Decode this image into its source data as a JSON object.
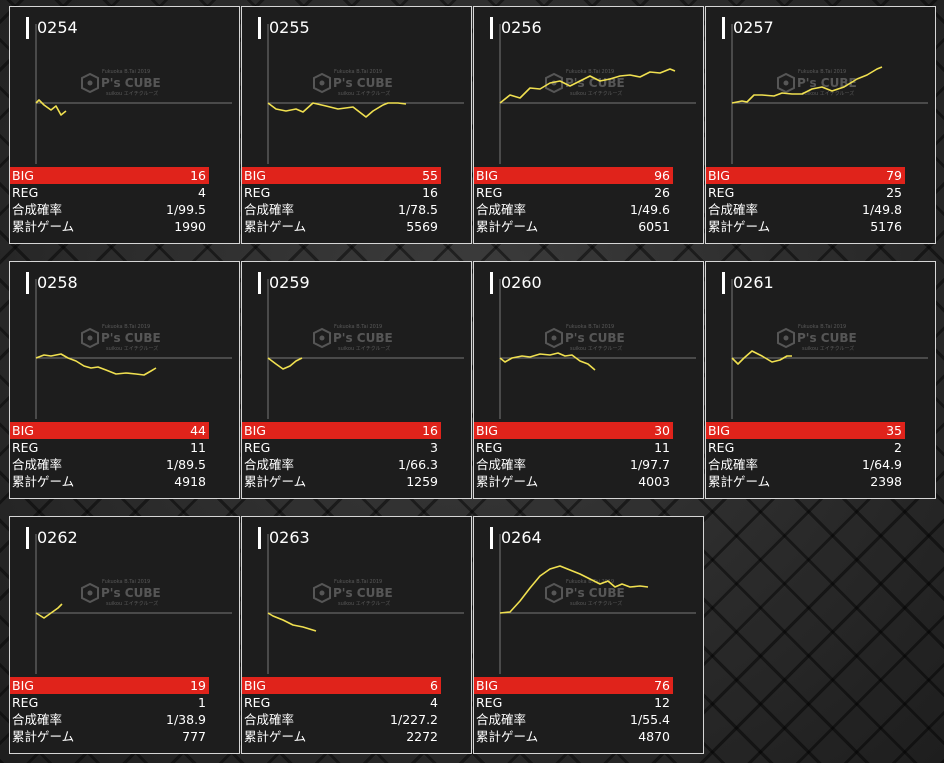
{
  "labels": {
    "big": "BIG",
    "reg": "REG",
    "rate": "合成確率",
    "games": "累計ゲーム"
  },
  "watermark": {
    "brand": "P's CUBE",
    "top_line": "Fukuoka B.Tai 2019",
    "bottom_line": "suikou エイチクルーズ"
  },
  "colors": {
    "line": "#f0e050",
    "big_bar": "#e0231b",
    "card_bg": "#1d1d1d",
    "axis": "#777777"
  },
  "machines": [
    {
      "number": "0254",
      "big": "16",
      "reg": "4",
      "rate": "1/99.5",
      "games": "1990",
      "graph": [
        [
          0,
          0
        ],
        [
          3,
          3
        ],
        [
          8,
          -2
        ],
        [
          15,
          -7
        ],
        [
          20,
          -3
        ],
        [
          25,
          -12
        ],
        [
          30,
          -8
        ]
      ]
    },
    {
      "number": "0255",
      "big": "55",
      "reg": "16",
      "rate": "1/78.5",
      "games": "5569",
      "graph": [
        [
          0,
          0
        ],
        [
          8,
          -6
        ],
        [
          18,
          -8
        ],
        [
          28,
          -6
        ],
        [
          35,
          -9
        ],
        [
          45,
          0
        ],
        [
          58,
          -3
        ],
        [
          70,
          -6
        ],
        [
          85,
          -4
        ],
        [
          98,
          -14
        ],
        [
          105,
          -8
        ],
        [
          115,
          -2
        ],
        [
          120,
          0
        ],
        [
          130,
          0
        ],
        [
          138,
          -1
        ]
      ]
    },
    {
      "number": "0256",
      "big": "96",
      "reg": "26",
      "rate": "1/49.6",
      "games": "6051",
      "graph": [
        [
          0,
          0
        ],
        [
          10,
          8
        ],
        [
          20,
          5
        ],
        [
          30,
          15
        ],
        [
          40,
          14
        ],
        [
          50,
          20
        ],
        [
          60,
          22
        ],
        [
          70,
          17
        ],
        [
          80,
          22
        ],
        [
          90,
          27
        ],
        [
          100,
          22
        ],
        [
          110,
          24
        ],
        [
          120,
          27
        ],
        [
          130,
          28
        ],
        [
          140,
          26
        ],
        [
          150,
          31
        ],
        [
          160,
          30
        ],
        [
          170,
          34
        ],
        [
          175,
          32
        ]
      ]
    },
    {
      "number": "0257",
      "big": "79",
      "reg": "25",
      "rate": "1/49.8",
      "games": "5176",
      "graph": [
        [
          0,
          0
        ],
        [
          10,
          2
        ],
        [
          15,
          1
        ],
        [
          22,
          8
        ],
        [
          30,
          8
        ],
        [
          42,
          7
        ],
        [
          50,
          10
        ],
        [
          60,
          9
        ],
        [
          70,
          9
        ],
        [
          80,
          14
        ],
        [
          90,
          16
        ],
        [
          100,
          12
        ],
        [
          112,
          16
        ],
        [
          125,
          24
        ],
        [
          135,
          28
        ],
        [
          145,
          34
        ],
        [
          150,
          36
        ]
      ]
    },
    {
      "number": "0258",
      "big": "44",
      "reg": "11",
      "rate": "1/89.5",
      "games": "4918",
      "graph": [
        [
          0,
          0
        ],
        [
          8,
          3
        ],
        [
          15,
          2
        ],
        [
          25,
          4
        ],
        [
          32,
          0
        ],
        [
          40,
          -3
        ],
        [
          48,
          -8
        ],
        [
          55,
          -10
        ],
        [
          62,
          -9
        ],
        [
          70,
          -12
        ],
        [
          80,
          -16
        ],
        [
          90,
          -15
        ],
        [
          100,
          -16
        ],
        [
          108,
          -17
        ],
        [
          115,
          -13
        ],
        [
          120,
          -10
        ]
      ]
    },
    {
      "number": "0259",
      "big": "16",
      "reg": "3",
      "rate": "1/66.3",
      "games": "1259",
      "graph": [
        [
          0,
          0
        ],
        [
          8,
          -6
        ],
        [
          15,
          -11
        ],
        [
          22,
          -8
        ],
        [
          28,
          -3
        ],
        [
          34,
          0
        ]
      ]
    },
    {
      "number": "0260",
      "big": "30",
      "reg": "11",
      "rate": "1/97.7",
      "games": "4003",
      "graph": [
        [
          0,
          0
        ],
        [
          5,
          -4
        ],
        [
          12,
          0
        ],
        [
          22,
          2
        ],
        [
          30,
          1
        ],
        [
          40,
          4
        ],
        [
          50,
          3
        ],
        [
          58,
          5
        ],
        [
          65,
          2
        ],
        [
          72,
          3
        ],
        [
          80,
          -3
        ],
        [
          88,
          -6
        ],
        [
          95,
          -12
        ]
      ]
    },
    {
      "number": "0261",
      "big": "35",
      "reg": "2",
      "rate": "1/64.9",
      "games": "2398",
      "graph": [
        [
          0,
          0
        ],
        [
          6,
          -6
        ],
        [
          12,
          0
        ],
        [
          20,
          7
        ],
        [
          30,
          2
        ],
        [
          40,
          -4
        ],
        [
          48,
          -2
        ],
        [
          55,
          2
        ],
        [
          60,
          2
        ]
      ]
    },
    {
      "number": "0262",
      "big": "19",
      "reg": "1",
      "rate": "1/38.9",
      "games": "777",
      "graph": [
        [
          0,
          0
        ],
        [
          8,
          -5
        ],
        [
          15,
          0
        ],
        [
          22,
          5
        ],
        [
          26,
          9
        ]
      ]
    },
    {
      "number": "0263",
      "big": "6",
      "reg": "4",
      "rate": "1/227.2",
      "games": "2272",
      "graph": [
        [
          0,
          0
        ],
        [
          5,
          -3
        ],
        [
          15,
          -7
        ],
        [
          25,
          -12
        ],
        [
          35,
          -14
        ],
        [
          48,
          -18
        ]
      ]
    },
    {
      "number": "0264",
      "big": "76",
      "reg": "12",
      "rate": "1/55.4",
      "games": "4870",
      "graph": [
        [
          0,
          0
        ],
        [
          10,
          1
        ],
        [
          20,
          12
        ],
        [
          30,
          25
        ],
        [
          40,
          37
        ],
        [
          50,
          44
        ],
        [
          60,
          47
        ],
        [
          70,
          43
        ],
        [
          80,
          39
        ],
        [
          90,
          34
        ],
        [
          100,
          29
        ],
        [
          108,
          32
        ],
        [
          115,
          26
        ],
        [
          122,
          29
        ],
        [
          130,
          26
        ],
        [
          140,
          27
        ],
        [
          148,
          26
        ]
      ]
    }
  ]
}
